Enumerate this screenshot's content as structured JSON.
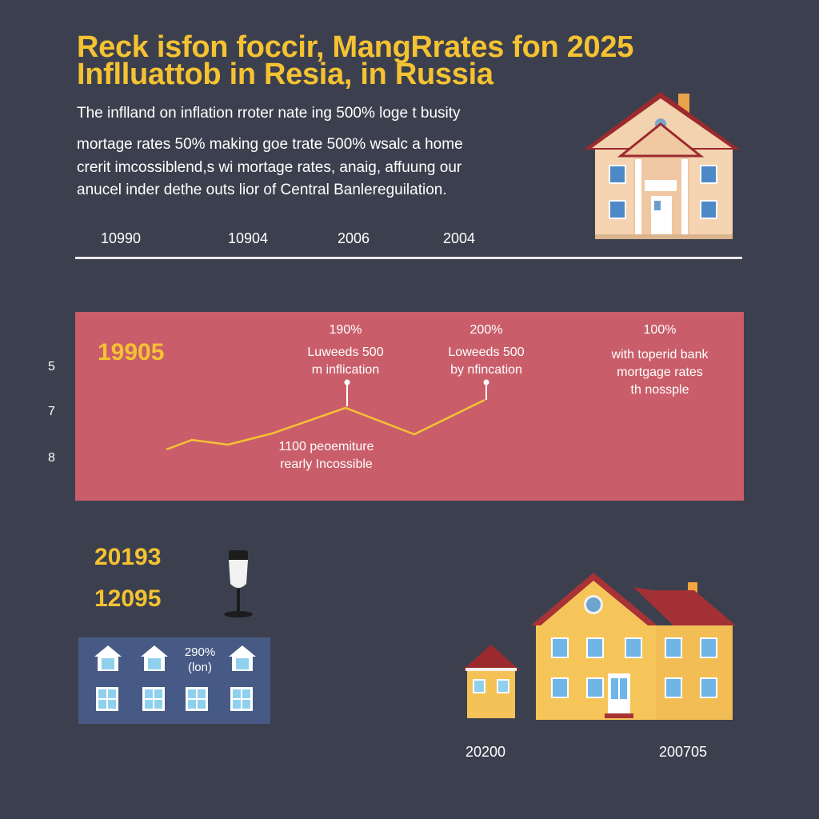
{
  "title": {
    "line1": "Reck isfon foccir, MangRrates fon 2025",
    "line2": "Inflluattob in Resia, in Russia"
  },
  "intro": {
    "line1": "The inflland on inflation rroter nate ing 500% loge t busity",
    "line2": "mortage rates 50% making goe trate 500% wsalc a home",
    "line3": "crerit imcossiblend,s wi mortage rates, anaig, affuung our",
    "line4": "anucel inder dethe outs lior of Central Banlereguilation."
  },
  "timeline": [
    "10990",
    "10904",
    "2006",
    "2004"
  ],
  "chart": {
    "year_label": "19905",
    "y_ticks": [
      "5",
      "7",
      "8"
    ],
    "annotations": [
      {
        "pct": "190%",
        "text1": "Luweeds 500",
        "text2": "m inflication"
      },
      {
        "pct": "200%",
        "text1": "Loweeds 500",
        "text2": "by nfincation"
      },
      {
        "pct": "100%",
        "text1": "with toperid bank",
        "text2": "mortgage rates",
        "text3": "th nossple"
      }
    ],
    "lower_note": {
      "line1": "1100 peoemiture",
      "line2": "rearly Incossible"
    },
    "line_color": "#f5c232",
    "panel_color": "#c95e6a"
  },
  "bottom_left": {
    "year1": "20193",
    "year2": "12095",
    "grid_pct": "290%",
    "grid_sub": "(lon)"
  },
  "bottom_years": [
    "20200",
    "200705"
  ],
  "icons": {
    "top_house": "house-icon",
    "microphone": "microphone-icon",
    "small_house": "small-house-icon",
    "large_house": "large-house-icon"
  }
}
